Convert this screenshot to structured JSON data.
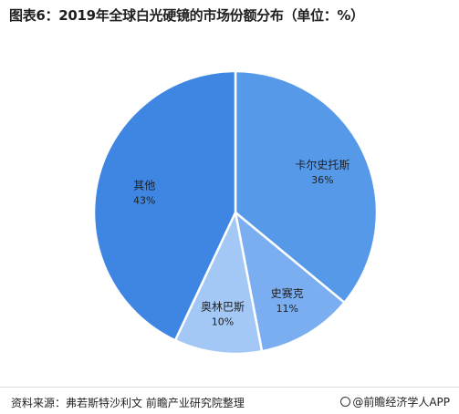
{
  "title": "图表6：2019年全球白光硬镜的市场份额分布（单位：%）",
  "footer": {
    "source": "资料来源：弗若斯特沙利文 前瞻产业研究院整理",
    "brand": "@前瞻经济学人APP"
  },
  "chart_data": {
    "type": "pie",
    "title": "图表6：2019年全球白光硬镜的市场份额分布（单位：%）",
    "unit": "%",
    "slices": [
      {
        "name": "卡尔史托斯",
        "value": 36,
        "label": "36%",
        "color": "#5599e8"
      },
      {
        "name": "史赛克",
        "value": 11,
        "label": "11%",
        "color": "#7aaef0"
      },
      {
        "name": "奥林巴斯",
        "value": 10,
        "label": "10%",
        "color": "#a3c8f6"
      },
      {
        "name": "其他",
        "value": 43,
        "label": "43%",
        "color": "#3f86e3"
      }
    ],
    "start": "12 o'clock",
    "direction": "clockwise",
    "legend": "none"
  }
}
